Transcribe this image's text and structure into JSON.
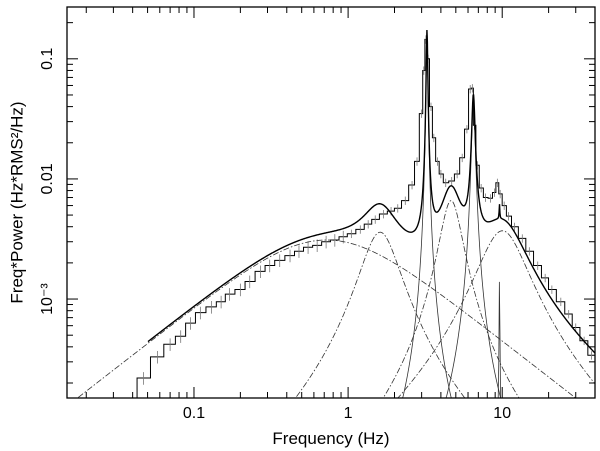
{
  "chart_data": {
    "type": "line",
    "xlabel": "Frequency (Hz)",
    "ylabel": "Freq*Power (Hz*RMS²/Hz)",
    "xscale": "log",
    "yscale": "log",
    "xlim": [
      0.015,
      40
    ],
    "ylim": [
      0.00015,
      0.27
    ],
    "xticks": [
      {
        "value": 0.1,
        "label": "0.1"
      },
      {
        "value": 1,
        "label": "1"
      },
      {
        "value": 10,
        "label": "10"
      }
    ],
    "yticks": [
      {
        "value": 0.001,
        "label": "10⁻³"
      },
      {
        "value": 0.01,
        "label": "0.01"
      },
      {
        "value": 0.1,
        "label": "0.1"
      }
    ],
    "grid": false,
    "legend": "none",
    "data_points": {
      "x": [
        0.047,
        0.058,
        0.07,
        0.082,
        0.095,
        0.11,
        0.13,
        0.15,
        0.17,
        0.2,
        0.23,
        0.27,
        0.31,
        0.36,
        0.42,
        0.48,
        0.55,
        0.63,
        0.72,
        0.82,
        0.93,
        1.05,
        1.2,
        1.35,
        1.5,
        1.7,
        1.9,
        2.1,
        2.35,
        2.6,
        2.8,
        3.0,
        3.1,
        3.2,
        3.3,
        3.45,
        3.6,
        3.8,
        4.0,
        4.3,
        4.7,
        5.1,
        5.5,
        5.9,
        6.2,
        6.4,
        6.6,
        6.9,
        7.3,
        7.8,
        8.4,
        8.9,
        9.3,
        9.7,
        10.3,
        11,
        12,
        13.5,
        15,
        17,
        19,
        21,
        24,
        27,
        30,
        34,
        38
      ],
      "y": [
        0.00022,
        0.00033,
        0.00042,
        0.00049,
        0.00063,
        0.00077,
        0.00086,
        0.00095,
        0.0011,
        0.0012,
        0.0014,
        0.0017,
        0.0019,
        0.0021,
        0.0023,
        0.0025,
        0.0027,
        0.0028,
        0.003,
        0.0031,
        0.0033,
        0.0035,
        0.0038,
        0.0042,
        0.0046,
        0.0051,
        0.0054,
        0.0057,
        0.0066,
        0.0089,
        0.014,
        0.035,
        0.08,
        0.145,
        0.1,
        0.04,
        0.022,
        0.014,
        0.011,
        0.0093,
        0.0096,
        0.011,
        0.015,
        0.026,
        0.056,
        0.057,
        0.028,
        0.013,
        0.0084,
        0.007,
        0.0069,
        0.0077,
        0.0093,
        0.0075,
        0.006,
        0.0049,
        0.004,
        0.0032,
        0.0025,
        0.0019,
        0.0015,
        0.0012,
        0.00095,
        0.00075,
        0.00058,
        0.00045,
        0.00034
      ]
    },
    "model_curves": [
      {
        "kind": "lorentzian",
        "style": "dash-dot",
        "norm": 0.0031,
        "centroid": 0,
        "width": 1.45
      },
      {
        "kind": "lorentzian",
        "style": "dash-dot",
        "norm": 0.0036,
        "centroid": 1.55,
        "width": 0.9
      },
      {
        "kind": "lorentzian",
        "style": "solid",
        "norm": 0.148,
        "centroid": 3.25,
        "width": 0.07
      },
      {
        "kind": "lorentzian",
        "style": "dash-dot",
        "norm": 0.0066,
        "centroid": 4.6,
        "width": 1.5
      },
      {
        "kind": "lorentzian",
        "style": "solid",
        "norm": 0.047,
        "centroid": 6.5,
        "width": 0.3
      },
      {
        "kind": "lorentzian",
        "style": "dash-dot",
        "norm": 0.0037,
        "centroid": 9.4,
        "width": 7.0
      },
      {
        "kind": "lorentzian",
        "style": "solid",
        "norm": 0.0012,
        "centroid": 9.6,
        "width": 0.1
      }
    ]
  }
}
